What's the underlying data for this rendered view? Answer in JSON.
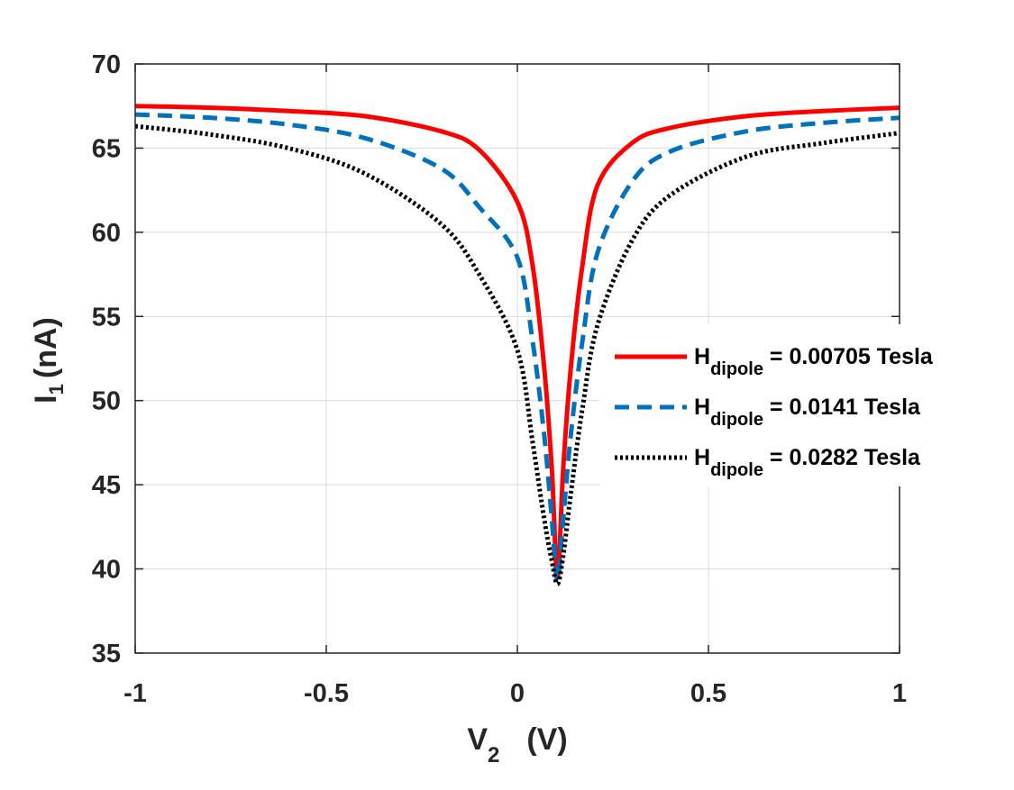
{
  "chart_data": {
    "type": "line",
    "xlabel": "V",
    "xlabel_sub": "2",
    "xlabel_unit": "(V)",
    "ylabel": "I",
    "ylabel_sub": "1",
    "ylabel_unit": "(nA)",
    "xlim": [
      -1,
      1
    ],
    "ylim": [
      35,
      70
    ],
    "xticks": [
      -1,
      -0.5,
      0,
      0.5,
      1
    ],
    "xtick_labels": [
      "-1",
      "-0.5",
      "0",
      "0.5",
      "1"
    ],
    "yticks": [
      35,
      40,
      45,
      50,
      55,
      60,
      65,
      70
    ],
    "ytick_labels": [
      "35",
      "40",
      "45",
      "50",
      "55",
      "60",
      "65",
      "70"
    ],
    "grid": true,
    "legend_position": "right",
    "series": [
      {
        "name": "H dipole = 0.00705 Tesla",
        "legend_main": "H",
        "legend_sub": "dipole",
        "legend_value": " = 0.00705 Tesla",
        "color": "#ff0000",
        "style": "solid",
        "x": [
          -1,
          -0.8,
          -0.6,
          -0.4,
          -0.2,
          -0.1,
          0,
          0.04,
          0.07,
          0.09,
          0.105,
          0.12,
          0.14,
          0.17,
          0.21,
          0.3,
          0.4,
          0.6,
          0.8,
          1
        ],
        "y": [
          67.5,
          67.4,
          67.2,
          66.9,
          66.0,
          64.9,
          61.8,
          58.0,
          52.0,
          46.0,
          39.5,
          46.0,
          52.0,
          58.0,
          62.8,
          65.3,
          66.2,
          66.9,
          67.2,
          67.4
        ]
      },
      {
        "name": "H dipole = 0.0141 Tesla",
        "legend_main": "H",
        "legend_sub": "dipole",
        "legend_value": " = 0.0141 Tesla",
        "color": "#0072bd",
        "style": "dashed",
        "x": [
          -1,
          -0.8,
          -0.6,
          -0.4,
          -0.2,
          -0.1,
          0,
          0.04,
          0.07,
          0.09,
          0.105,
          0.12,
          0.14,
          0.17,
          0.21,
          0.3,
          0.4,
          0.6,
          0.8,
          1
        ],
        "y": [
          67.0,
          66.8,
          66.4,
          65.6,
          63.8,
          61.5,
          58.5,
          53.5,
          48.0,
          43.0,
          39.3,
          43.0,
          48.0,
          53.5,
          58.8,
          63.0,
          64.8,
          66.0,
          66.5,
          66.8
        ]
      },
      {
        "name": "H dipole = 0.0282 Tesla",
        "legend_main": "H",
        "legend_sub": "dipole",
        "legend_value": " = 0.0282 Tesla",
        "color": "#000000",
        "style": "dotted",
        "x": [
          -1,
          -0.8,
          -0.6,
          -0.4,
          -0.2,
          -0.1,
          0,
          0.04,
          0.07,
          0.09,
          0.105,
          0.12,
          0.14,
          0.17,
          0.21,
          0.3,
          0.4,
          0.6,
          0.8,
          1
        ],
        "y": [
          66.3,
          65.8,
          65.0,
          63.5,
          60.5,
          57.5,
          53.0,
          47.5,
          43.0,
          40.5,
          39.1,
          40.8,
          44.5,
          49.5,
          54.5,
          59.5,
          62.2,
          64.5,
          65.3,
          65.9
        ]
      }
    ]
  }
}
